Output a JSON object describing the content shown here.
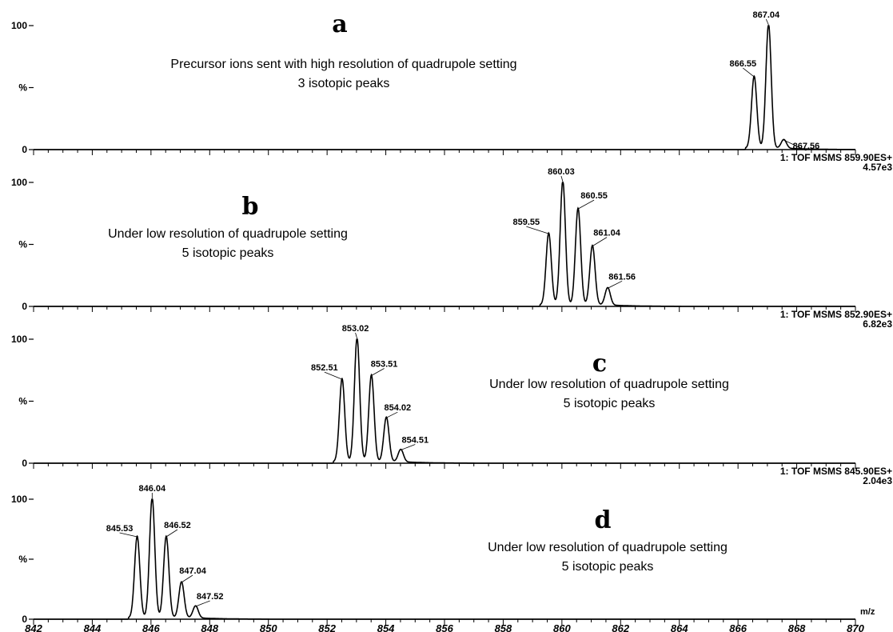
{
  "chart_data": [
    {
      "type": "line",
      "panel_letter": "a",
      "annotation_lines": [
        "Precursor ions sent with high resolution of quadrupole setting",
        "3 isotopic peaks"
      ],
      "instrument": "1: TOF MSMS 859.90ES+",
      "intensity_max": "4.57e3",
      "ylabels": {
        "top": "100",
        "mid": "%",
        "bottom": "0"
      },
      "xlim": [
        842,
        870
      ],
      "peaks": [
        {
          "x": 866.55,
          "y": 58,
          "label": "866.55"
        },
        {
          "x": 867.04,
          "y": 100,
          "label": "867.04"
        },
        {
          "x": 867.56,
          "y": 7,
          "label": "867.56"
        }
      ]
    },
    {
      "type": "line",
      "panel_letter": "b",
      "annotation_lines": [
        "Under low resolution of quadrupole setting",
        "5 isotopic  peaks"
      ],
      "instrument": "1: TOF MSMS 852.90ES+",
      "intensity_max": "6.82e3",
      "ylabels": {
        "top": "100",
        "mid": "%",
        "bottom": "0"
      },
      "xlim": [
        842,
        870
      ],
      "peaks": [
        {
          "x": 859.55,
          "y": 58,
          "label": "859.55"
        },
        {
          "x": 860.03,
          "y": 100,
          "label": "860.03"
        },
        {
          "x": 860.55,
          "y": 78,
          "label": "860.55"
        },
        {
          "x": 861.04,
          "y": 48,
          "label": "861.04"
        },
        {
          "x": 861.56,
          "y": 14,
          "label": "861.56"
        }
      ]
    },
    {
      "type": "line",
      "panel_letter": "c",
      "annotation_lines": [
        "Under low resolution of quadrupole setting",
        "5 isotopic  peaks"
      ],
      "instrument": "1: TOF MSMS 845.90ES+",
      "intensity_max": "2.04e3",
      "ylabels": {
        "top": "100",
        "mid": "%",
        "bottom": "0"
      },
      "xlim": [
        842,
        870
      ],
      "peaks": [
        {
          "x": 852.51,
          "y": 67,
          "label": "852.51"
        },
        {
          "x": 853.02,
          "y": 100,
          "label": "853.02"
        },
        {
          "x": 853.51,
          "y": 70,
          "label": "853.51"
        },
        {
          "x": 854.02,
          "y": 36,
          "label": "854.02"
        },
        {
          "x": 854.51,
          "y": 10,
          "label": "854.51"
        }
      ]
    },
    {
      "type": "line",
      "panel_letter": "d",
      "annotation_lines": [
        "Under low resolution of quadrupole setting",
        "5 isotopic  peaks"
      ],
      "ylabels": {
        "top": "100",
        "mid": "%",
        "bottom": "0"
      },
      "xlim": [
        842,
        870
      ],
      "xlabel": "m/z",
      "xticks": [
        842,
        844,
        846,
        848,
        850,
        852,
        854,
        856,
        858,
        860,
        862,
        864,
        866,
        868,
        870
      ],
      "peaks": [
        {
          "x": 845.53,
          "y": 68,
          "label": "845.53"
        },
        {
          "x": 846.04,
          "y": 100,
          "label": "846.04"
        },
        {
          "x": 846.52,
          "y": 68,
          "label": "846.52"
        },
        {
          "x": 847.04,
          "y": 30,
          "label": "847.04"
        },
        {
          "x": 847.52,
          "y": 10,
          "label": "847.52"
        }
      ]
    }
  ],
  "colors": {
    "ink": "#000000",
    "background": "#ffffff"
  }
}
